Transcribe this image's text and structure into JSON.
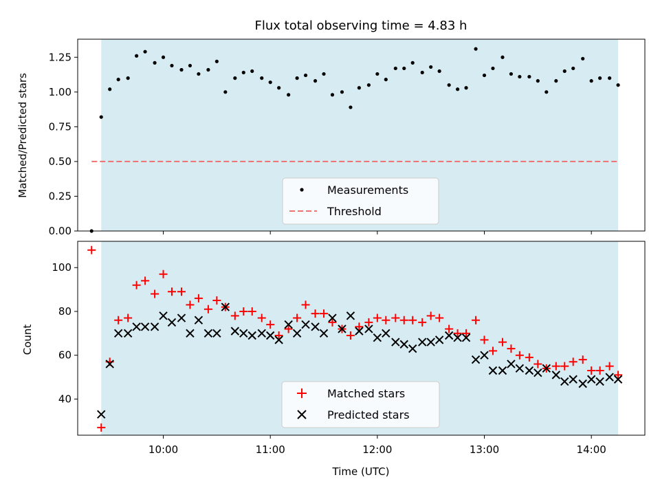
{
  "chart_data": [
    {
      "type": "scatter",
      "title": "Flux total observing time = 4.83 h",
      "xlabel": "",
      "ylabel": "Matched/Predicted stars",
      "xlim": [
        9.2,
        14.5
      ],
      "ylim": [
        0.0,
        1.38
      ],
      "xticks": [
        10,
        11,
        12,
        13,
        14
      ],
      "yticks": [
        0.0,
        0.25,
        0.5,
        0.75,
        1.0,
        1.25
      ],
      "ytick_labels": [
        "0.00",
        "0.25",
        "0.50",
        "0.75",
        "1.00",
        "1.25"
      ],
      "shaded_span": [
        9.42,
        14.25
      ],
      "threshold": {
        "value": 0.5,
        "x_range": [
          9.33,
          14.25
        ]
      },
      "legend": {
        "position": "bottom-center",
        "entries": [
          "Measurements",
          "Threshold"
        ]
      },
      "series": [
        {
          "name": "Measurements",
          "x": [
            9.33,
            9.42,
            9.5,
            9.58,
            9.67,
            9.75,
            9.83,
            9.92,
            10.0,
            10.08,
            10.17,
            10.25,
            10.33,
            10.42,
            10.5,
            10.58,
            10.67,
            10.75,
            10.83,
            10.92,
            11.0,
            11.08,
            11.17,
            11.25,
            11.33,
            11.42,
            11.5,
            11.58,
            11.67,
            11.75,
            11.83,
            11.92,
            12.0,
            12.08,
            12.17,
            12.25,
            12.33,
            12.42,
            12.5,
            12.58,
            12.67,
            12.75,
            12.83,
            12.92,
            13.0,
            13.08,
            13.17,
            13.25,
            13.33,
            13.42,
            13.5,
            13.58,
            13.67,
            13.75,
            13.83,
            13.92,
            14.0,
            14.08,
            14.17,
            14.25
          ],
          "values": [
            0.0,
            0.82,
            1.02,
            1.09,
            1.1,
            1.26,
            1.29,
            1.21,
            1.25,
            1.19,
            1.16,
            1.19,
            1.13,
            1.16,
            1.22,
            1.0,
            1.1,
            1.14,
            1.15,
            1.1,
            1.07,
            1.03,
            0.98,
            1.1,
            1.12,
            1.08,
            1.13,
            0.98,
            1.0,
            0.89,
            1.03,
            1.05,
            1.13,
            1.09,
            1.17,
            1.17,
            1.21,
            1.14,
            1.18,
            1.15,
            1.05,
            1.02,
            1.03,
            1.31,
            1.12,
            1.17,
            1.25,
            1.13,
            1.11,
            1.11,
            1.08,
            1.0,
            1.08,
            1.15,
            1.17,
            1.24,
            1.08,
            1.1,
            1.1,
            1.05
          ]
        }
      ]
    },
    {
      "type": "scatter",
      "title": "",
      "xlabel": "Time (UTC)",
      "ylabel": "Count",
      "xlim": [
        9.2,
        14.5
      ],
      "ylim": [
        23.5,
        112
      ],
      "xticks": [
        10,
        11,
        12,
        13,
        14
      ],
      "xtick_labels": [
        "10:00",
        "11:00",
        "12:00",
        "13:00",
        "14:00"
      ],
      "yticks": [
        40,
        60,
        80,
        100
      ],
      "ytick_labels": [
        "40",
        "60",
        "80",
        "100"
      ],
      "shaded_span": [
        9.42,
        14.25
      ],
      "legend": {
        "position": "bottom-center",
        "entries": [
          "Matched stars",
          "Predicted stars"
        ]
      },
      "series": [
        {
          "name": "Matched stars",
          "x": [
            9.33,
            9.42,
            9.5,
            9.58,
            9.67,
            9.75,
            9.83,
            9.92,
            10.0,
            10.08,
            10.17,
            10.25,
            10.33,
            10.42,
            10.5,
            10.58,
            10.67,
            10.75,
            10.83,
            10.92,
            11.0,
            11.08,
            11.17,
            11.25,
            11.33,
            11.42,
            11.5,
            11.58,
            11.67,
            11.75,
            11.83,
            11.92,
            12.0,
            12.08,
            12.17,
            12.25,
            12.33,
            12.42,
            12.5,
            12.58,
            12.67,
            12.75,
            12.83,
            12.92,
            13.0,
            13.08,
            13.17,
            13.25,
            13.33,
            13.42,
            13.5,
            13.58,
            13.67,
            13.75,
            13.83,
            13.92,
            14.0,
            14.08,
            14.17,
            14.25
          ],
          "values": [
            108,
            27,
            57,
            76,
            77,
            92,
            94,
            88,
            97,
            89,
            89,
            83,
            86,
            81,
            85,
            82,
            78,
            80,
            80,
            77,
            74,
            69,
            72,
            77,
            83,
            79,
            79,
            75,
            72,
            69,
            73,
            75,
            77,
            76,
            77,
            76,
            76,
            75,
            78,
            77,
            72,
            70,
            70,
            76,
            67,
            62,
            66,
            63,
            60,
            59,
            56,
            54,
            55,
            55,
            57,
            58,
            53,
            53,
            55,
            51
          ]
        },
        {
          "name": "Predicted stars",
          "x": [
            9.42,
            9.5,
            9.58,
            9.67,
            9.75,
            9.83,
            9.92,
            10.0,
            10.08,
            10.17,
            10.25,
            10.33,
            10.42,
            10.5,
            10.58,
            10.67,
            10.75,
            10.83,
            10.92,
            11.0,
            11.08,
            11.17,
            11.25,
            11.33,
            11.42,
            11.5,
            11.58,
            11.67,
            11.75,
            11.83,
            11.92,
            12.0,
            12.08,
            12.17,
            12.25,
            12.33,
            12.42,
            12.5,
            12.58,
            12.67,
            12.75,
            12.83,
            12.92,
            13.0,
            13.08,
            13.17,
            13.25,
            13.33,
            13.42,
            13.5,
            13.58,
            13.67,
            13.75,
            13.83,
            13.92,
            14.0,
            14.08,
            14.17,
            14.25
          ],
          "values": [
            33,
            56,
            70,
            70,
            73,
            73,
            73,
            78,
            75,
            77,
            70,
            76,
            70,
            70,
            82,
            71,
            70,
            69,
            70,
            69,
            67,
            74,
            70,
            74,
            73,
            70,
            77,
            72,
            78,
            71,
            72,
            68,
            70,
            66,
            65,
            63,
            66,
            66,
            67,
            69,
            68,
            68,
            58,
            60,
            53,
            53,
            56,
            54,
            53,
            52,
            54,
            51,
            48,
            49,
            47,
            49,
            48,
            50,
            49
          ]
        }
      ]
    }
  ]
}
